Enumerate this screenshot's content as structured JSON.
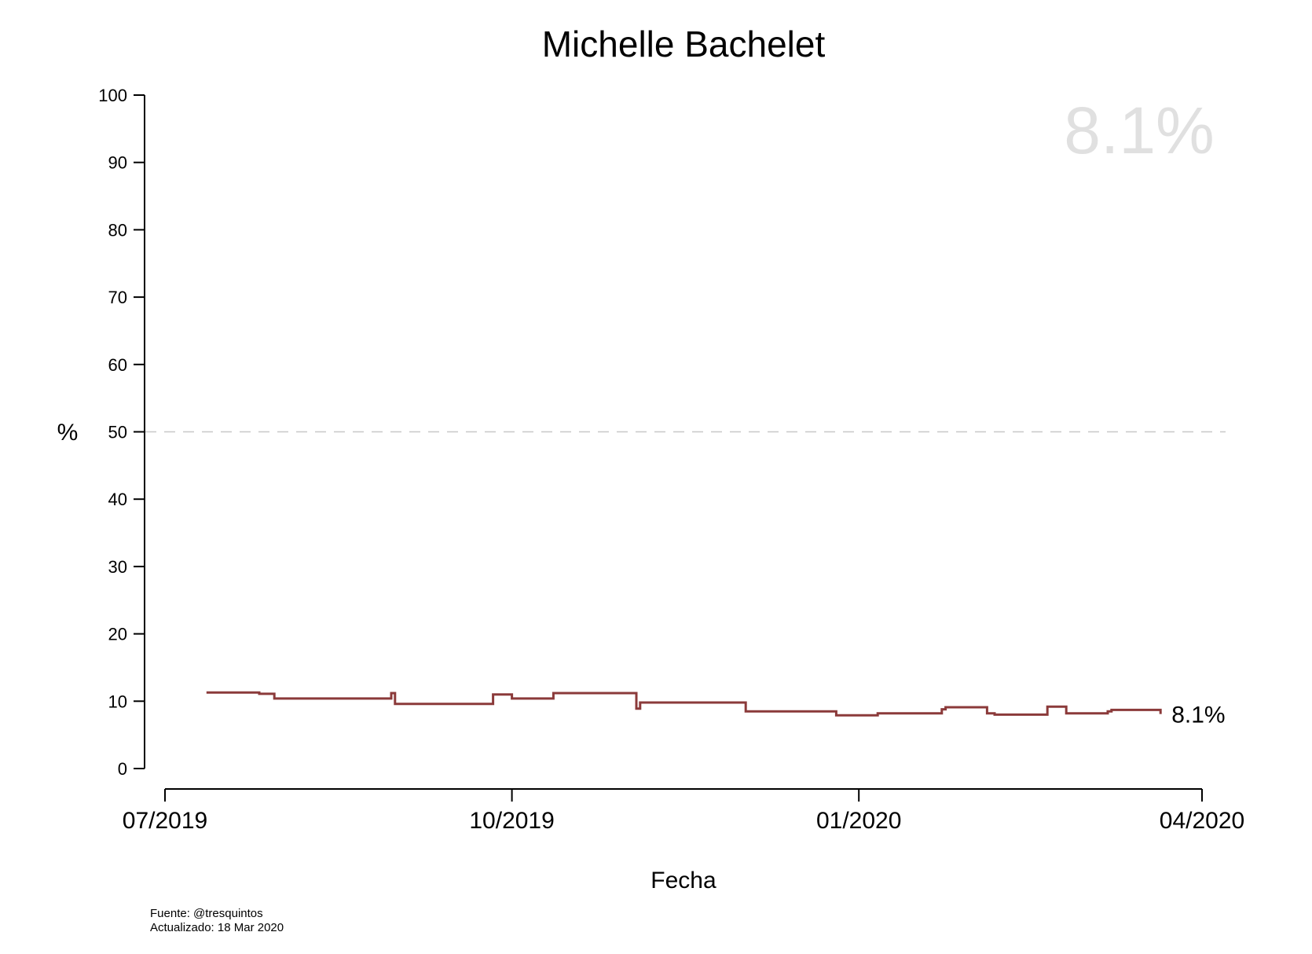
{
  "chart_data": {
    "type": "line",
    "step": true,
    "title": "Michelle Bachelet",
    "xlabel": "Fecha",
    "ylabel": "%",
    "ylim": [
      0,
      100
    ],
    "yticks": [
      "0",
      "10",
      "20",
      "30",
      "40",
      "50",
      "60",
      "70",
      "80",
      "90",
      "100"
    ],
    "xlim": [
      "2019-07-01",
      "2020-04-01"
    ],
    "xticks": [
      {
        "date": "2019-07-01",
        "label": "07/2019"
      },
      {
        "date": "2019-10-01",
        "label": "10/2019"
      },
      {
        "date": "2020-01-01",
        "label": "01/2020"
      },
      {
        "date": "2020-04-01",
        "label": "04/2020"
      }
    ],
    "reference_line": {
      "y": 50,
      "style": "dashed"
    },
    "line_color": "#8b3a3a",
    "highlight_value": "8.1%",
    "end_label": "8.1%",
    "points": [
      {
        "x": "2019-07-12",
        "y": 11.3
      },
      {
        "x": "2019-07-26",
        "y": 11.1
      },
      {
        "x": "2019-07-30",
        "y": 10.4
      },
      {
        "x": "2019-08-30",
        "y": 11.2
      },
      {
        "x": "2019-08-31",
        "y": 9.6
      },
      {
        "x": "2019-09-26",
        "y": 11.0
      },
      {
        "x": "2019-10-01",
        "y": 10.4
      },
      {
        "x": "2019-10-12",
        "y": 11.2
      },
      {
        "x": "2019-11-03",
        "y": 8.9
      },
      {
        "x": "2019-11-04",
        "y": 9.8
      },
      {
        "x": "2019-12-02",
        "y": 8.5
      },
      {
        "x": "2019-12-26",
        "y": 7.9
      },
      {
        "x": "2020-01-06",
        "y": 8.2
      },
      {
        "x": "2020-01-23",
        "y": 8.8
      },
      {
        "x": "2020-01-24",
        "y": 9.1
      },
      {
        "x": "2020-02-04",
        "y": 8.2
      },
      {
        "x": "2020-02-06",
        "y": 8.0
      },
      {
        "x": "2020-02-20",
        "y": 9.2
      },
      {
        "x": "2020-02-25",
        "y": 8.2
      },
      {
        "x": "2020-03-07",
        "y": 8.5
      },
      {
        "x": "2020-03-08",
        "y": 8.7
      },
      {
        "x": "2020-03-21",
        "y": 8.1
      }
    ]
  },
  "footer": {
    "source": "Fuente: @tresquintos",
    "updated": "Actualizado: 18 Mar 2020"
  }
}
